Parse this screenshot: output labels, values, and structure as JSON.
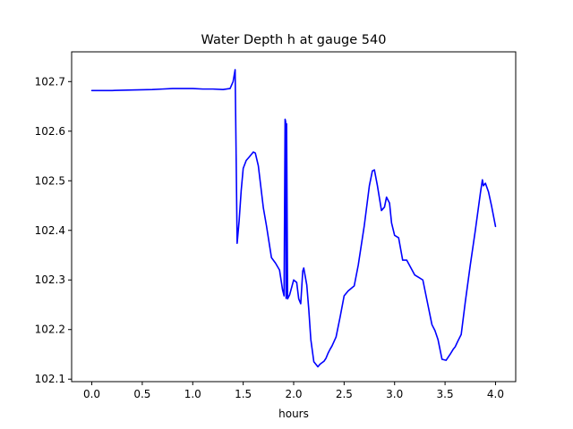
{
  "chart_data": {
    "type": "line",
    "title": "Water Depth h at gauge 540",
    "xlabel": "hours",
    "ylabel": "",
    "xlim": [
      -0.2,
      4.2
    ],
    "ylim": [
      102.095,
      102.76
    ],
    "xticks": [
      0.0,
      0.5,
      1.0,
      1.5,
      2.0,
      2.5,
      3.0,
      3.5,
      4.0
    ],
    "xtick_labels": [
      "0.0",
      "0.5",
      "1.0",
      "1.5",
      "2.0",
      "2.5",
      "3.0",
      "3.5",
      "4.0"
    ],
    "yticks": [
      102.1,
      102.2,
      102.3,
      102.4,
      102.5,
      102.6,
      102.7
    ],
    "ytick_labels": [
      "102.1",
      "102.2",
      "102.3",
      "102.4",
      "102.5",
      "102.6",
      "102.7"
    ],
    "grid": false,
    "series": [
      {
        "color": "#0000ff",
        "x": [
          0.0,
          0.2,
          0.4,
          0.6,
          0.7,
          0.8,
          0.9,
          1.0,
          1.1,
          1.2,
          1.3,
          1.37,
          1.4,
          1.42,
          1.43,
          1.44,
          1.46,
          1.48,
          1.5,
          1.53,
          1.56,
          1.6,
          1.62,
          1.65,
          1.7,
          1.73,
          1.78,
          1.82,
          1.86,
          1.89,
          1.905,
          1.915,
          1.92,
          1.925,
          1.93,
          1.94,
          1.96,
          1.98,
          2.0,
          2.03,
          2.05,
          2.07,
          2.09,
          2.1,
          2.13,
          2.15,
          2.17,
          2.2,
          2.24,
          2.26,
          2.28,
          2.3,
          2.32,
          2.34,
          2.36,
          2.38,
          2.42,
          2.46,
          2.5,
          2.54,
          2.6,
          2.64,
          2.7,
          2.75,
          2.78,
          2.8,
          2.83,
          2.87,
          2.9,
          2.92,
          2.95,
          2.97,
          3.0,
          3.04,
          3.08,
          3.12,
          3.16,
          3.2,
          3.24,
          3.28,
          3.3,
          3.33,
          3.37,
          3.4,
          3.43,
          3.47,
          3.51,
          3.55,
          3.58,
          3.6,
          3.63,
          3.66,
          3.7,
          3.75,
          3.8,
          3.85,
          3.87,
          3.88,
          3.9,
          3.93,
          3.96,
          4.0
        ],
        "y": [
          102.682,
          102.682,
          102.683,
          102.684,
          102.685,
          102.686,
          102.686,
          102.686,
          102.685,
          102.685,
          102.684,
          102.686,
          102.7,
          102.724,
          102.55,
          102.374,
          102.42,
          102.48,
          102.525,
          102.541,
          102.548,
          102.558,
          102.556,
          102.53,
          102.445,
          102.41,
          102.345,
          102.334,
          102.32,
          102.28,
          102.268,
          102.624,
          102.62,
          102.263,
          102.615,
          102.262,
          102.27,
          102.285,
          102.3,
          102.295,
          102.262,
          102.252,
          102.318,
          102.324,
          102.29,
          102.24,
          102.18,
          102.135,
          102.125,
          102.13,
          102.133,
          102.136,
          102.142,
          102.152,
          102.16,
          102.167,
          102.185,
          102.225,
          102.268,
          102.278,
          102.288,
          102.33,
          102.41,
          102.49,
          102.52,
          102.522,
          102.49,
          102.44,
          102.447,
          102.467,
          102.455,
          102.415,
          102.39,
          102.385,
          102.34,
          102.34,
          102.325,
          102.31,
          102.305,
          102.3,
          102.28,
          102.25,
          102.21,
          102.198,
          102.18,
          102.14,
          102.138,
          102.15,
          102.16,
          102.165,
          102.178,
          102.19,
          102.255,
          102.33,
          102.4,
          102.475,
          102.502,
          102.49,
          102.495,
          102.478,
          102.45,
          102.408
        ]
      }
    ]
  }
}
